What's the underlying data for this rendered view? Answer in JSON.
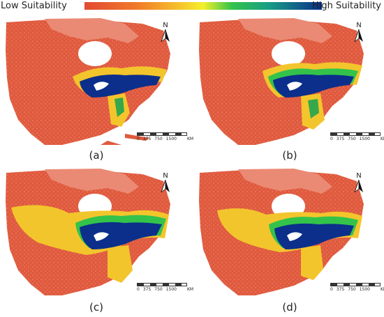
{
  "legend": {
    "low_label": "Low Suitability",
    "high_label": "High Suitability",
    "ramp_colors": [
      "#e24a33",
      "#f6c22a",
      "#34c34a",
      "#0b2f8a"
    ]
  },
  "colors": {
    "low": "#e05a3e",
    "mid": "#f3c52c",
    "high": "#0b2f8a",
    "water": "#ffffff"
  },
  "panels": [
    {
      "label": "(a)"
    },
    {
      "label": "(b)"
    },
    {
      "label": "(c)"
    },
    {
      "label": "(d)"
    }
  ],
  "north_arrow": {
    "letter": "N",
    "icon": "north-arrow-icon"
  },
  "scale": {
    "ticks": [
      "0",
      "375",
      "750",
      "1500"
    ],
    "unit": "KM"
  }
}
